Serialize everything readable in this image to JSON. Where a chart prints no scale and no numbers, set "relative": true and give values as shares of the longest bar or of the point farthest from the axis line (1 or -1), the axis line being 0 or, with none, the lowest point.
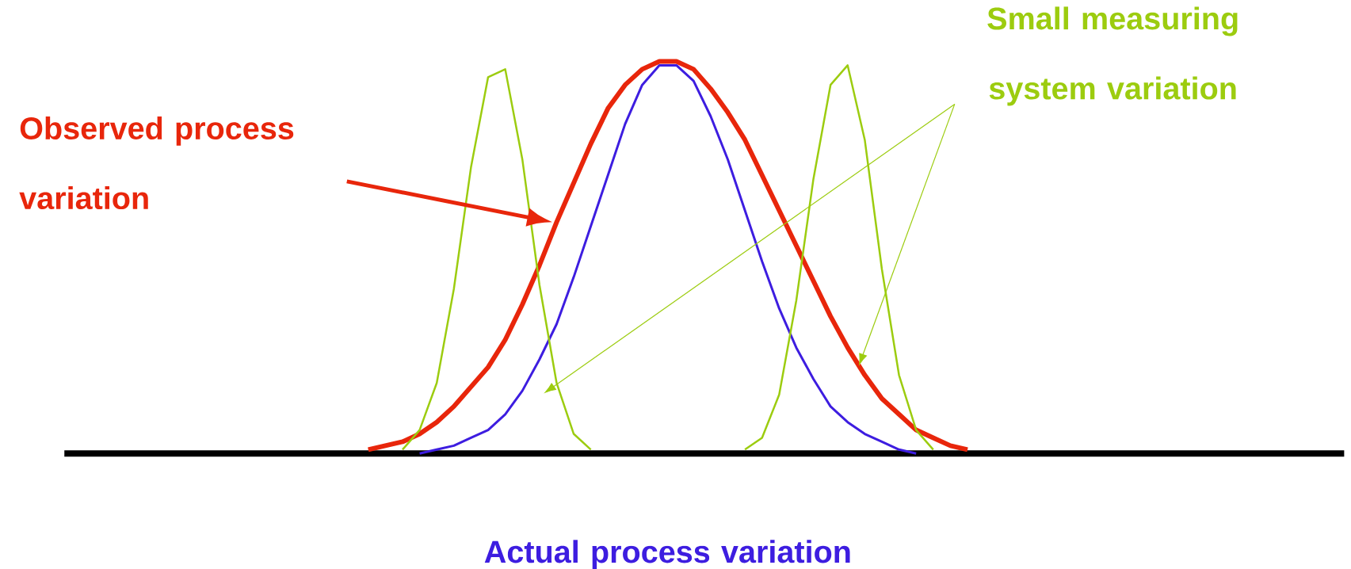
{
  "chart_data": {
    "type": "line",
    "relative": true,
    "categories": [
      null,
      null,
      null,
      null,
      null,
      null,
      null,
      null,
      null,
      null,
      null,
      null,
      null,
      null,
      null,
      null,
      null,
      null,
      null,
      null,
      null,
      null,
      null,
      null,
      null,
      null,
      null,
      null,
      null,
      null,
      null,
      null,
      null,
      null,
      null,
      null,
      null
    ],
    "series": [
      {
        "name": "Observed process variation",
        "color": "#e8260b",
        "values": [
          0.01,
          0.02,
          0.03,
          0.05,
          0.08,
          0.12,
          0.17,
          0.22,
          0.29,
          0.38,
          0.48,
          0.59,
          0.69,
          0.79,
          0.88,
          0.94,
          0.98,
          1.0,
          1.0,
          0.98,
          0.93,
          0.87,
          0.8,
          0.71,
          0.62,
          0.53,
          0.44,
          0.35,
          0.27,
          0.2,
          0.14,
          0.1,
          0.06,
          0.04,
          0.02,
          0.01,
          null
        ]
      },
      {
        "name": "Actual process variation",
        "color": "#3d1de0",
        "values": [
          null,
          null,
          null,
          0.0,
          0.01,
          0.02,
          0.04,
          0.06,
          0.1,
          0.16,
          0.24,
          0.33,
          0.45,
          0.58,
          0.71,
          0.84,
          0.94,
          0.99,
          0.99,
          0.95,
          0.86,
          0.75,
          0.62,
          0.49,
          0.37,
          0.27,
          0.19,
          0.12,
          0.08,
          0.05,
          0.03,
          0.01,
          0.0,
          null,
          null,
          null,
          null
        ]
      },
      {
        "name": "Small measuring system variation",
        "color": "#9ccc0f",
        "values": [
          null,
          null,
          0.01,
          0.06,
          0.18,
          0.42,
          0.73,
          0.96,
          0.98,
          0.75,
          0.43,
          0.18,
          0.05,
          0.01,
          null,
          null,
          null,
          null,
          null,
          null,
          null,
          null,
          null,
          null,
          null,
          null,
          null,
          null,
          null,
          null,
          null,
          null,
          null,
          null,
          null,
          null,
          null
        ]
      },
      {
        "color": "#9ccc0f",
        "values": [
          null,
          null,
          null,
          null,
          null,
          null,
          null,
          null,
          null,
          null,
          null,
          null,
          null,
          null,
          null,
          null,
          null,
          null,
          null,
          null,
          null,
          null,
          0.01,
          0.04,
          0.15,
          0.39,
          0.7,
          0.94,
          0.99,
          0.8,
          0.47,
          0.2,
          0.06,
          0.01,
          null,
          null,
          null
        ]
      }
    ]
  }
}
